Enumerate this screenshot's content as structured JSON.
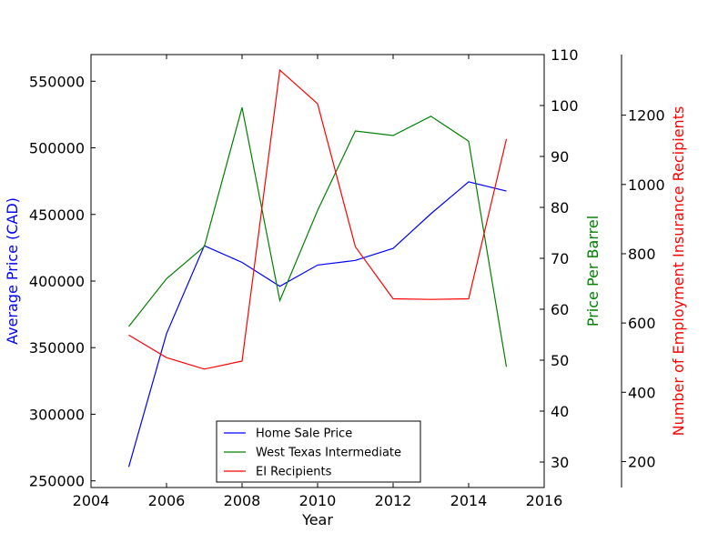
{
  "chart_data": {
    "type": "line",
    "xlabel": "Year",
    "x_axis": {
      "range": [
        2004,
        2016
      ],
      "ticks": [
        "2004",
        "2006",
        "2008",
        "2010",
        "2012",
        "2014",
        "2016"
      ],
      "tick_values": [
        2004,
        2006,
        2008,
        2010,
        2012,
        2014,
        2016
      ]
    },
    "left_axis": {
      "label": "Average Price (CAD)",
      "color": "#0000ff",
      "range": [
        245000,
        570000
      ],
      "ticks": [
        "250000",
        "300000",
        "350000",
        "400000",
        "450000",
        "500000",
        "550000"
      ],
      "tick_values": [
        250000,
        300000,
        350000,
        400000,
        450000,
        500000,
        550000
      ]
    },
    "right_axis": {
      "label": "Price Per Barrel",
      "color": "#008000",
      "range": [
        25,
        110
      ],
      "ticks": [
        "30",
        "40",
        "50",
        "60",
        "70",
        "80",
        "90",
        "100",
        "110"
      ],
      "tick_values": [
        30,
        40,
        50,
        60,
        70,
        80,
        90,
        100,
        110
      ]
    },
    "outer_axis": {
      "label": "Number of Employment Insurance Recipients",
      "color": "#ff0000",
      "range": [
        125,
        1375
      ],
      "ticks": [
        "200",
        "400",
        "600",
        "800",
        "1000",
        "1200"
      ],
      "tick_values": [
        200,
        400,
        600,
        800,
        1000,
        1200
      ]
    },
    "x": [
      2005,
      2006,
      2007,
      2008,
      2009,
      2010,
      2011,
      2012,
      2013,
      2014,
      2015
    ],
    "series": [
      {
        "name": "Home Sale Price",
        "axis": "left",
        "color": "#0000ff",
        "values": [
          260500,
          360500,
          426500,
          414000,
          396000,
          412000,
          415500,
          424500,
          450500,
          474500,
          467500
        ]
      },
      {
        "name": "West Texas Intermediate",
        "axis": "right",
        "color": "#008000",
        "values": [
          56.6,
          66.0,
          72.3,
          99.6,
          61.7,
          79.4,
          95.0,
          94.1,
          97.9,
          93.0,
          48.7
        ]
      },
      {
        "name": "EI Recipients",
        "axis": "outer",
        "color": "#ff0000",
        "values": [
          565,
          500,
          467,
          490,
          1330,
          1233,
          820,
          670,
          668,
          670,
          1131
        ]
      }
    ],
    "legend_position": "bottom-center",
    "grid": false
  }
}
